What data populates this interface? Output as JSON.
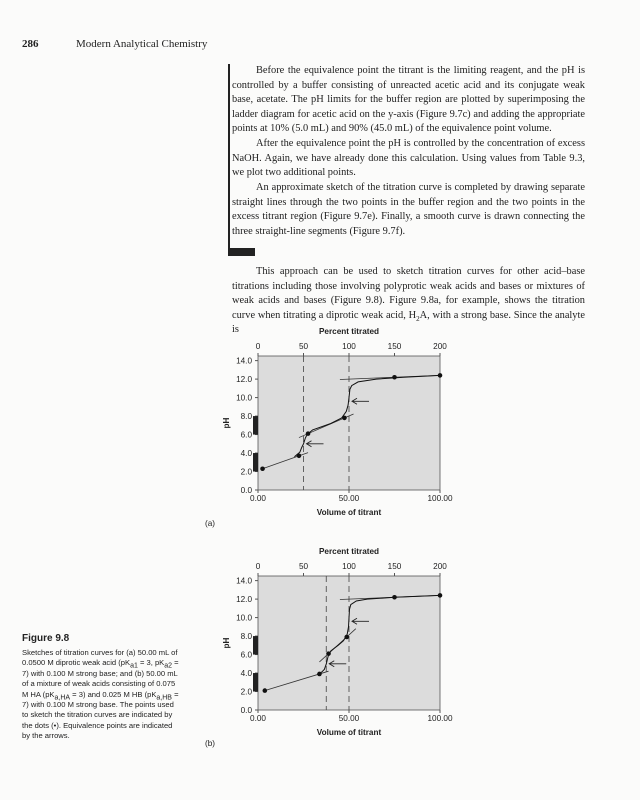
{
  "header": {
    "page_number": "286",
    "running_title": "Modern Analytical Chemistry"
  },
  "paragraphs": [
    [
      "Before the equivalence point the titrant is the limiting reagent, and the pH is controlled by a buffer consisting of unreacted acetic acid and its conjugate weak base, acetate. The pH limits for the buffer region are plotted by superimposing the ladder diagram for acetic acid on the y-axis (Figure 9.7c) and adding the appropriate points at 10% (5.0 mL) and 90% (45.0 mL) of the equivalence point volume."
    ],
    [
      "After the equivalence point the pH is controlled by the concentration of excess NaOH. Again, we have already done this calculation. Using values from Table 9.3, we plot two additional points."
    ],
    [
      "An approximate sketch of the titration curve is completed by drawing separate straight lines through the two points in the buffer region and the two points in the excess titrant region (Figure 9.7e). Finally, a smooth curve is drawn connecting the three straight-line segments (Figure 9.7f)."
    ],
    [
      "This approach can be used to sketch titration curves for other acid–base titrations including those involving polyprotic weak acids and bases or mixtures of weak acids and bases (Figure 9.8). Figure 9.8a, for example, shows the titration curve when titrating a diprotic weak acid, H",
      "2",
      "A, with a strong base. Since the analyte is"
    ]
  ],
  "figure": {
    "label": "Figure 9.8",
    "caption": [
      "Sketches of titration curves for (a) 50.00 mL of 0.0500 M diprotic weak acid (pK",
      "a1",
      " = 3, pK",
      "a2",
      " = 7) with 0.100 M strong base; and (b) 50.00 mL of a mixture of weak acids consisting of 0.075 M HA (pK",
      "a,HA",
      " = 3) and 0.025 M HB (pK",
      "a,HB",
      " = 7) with 0.100 M strong base. The points used to sketch the titration curves are indicated by the dots (•). Equivalence points are indicated by the arrows."
    ]
  },
  "chart_data": [
    {
      "type": "line",
      "panel": "(a)",
      "x2_label": "Percent titrated",
      "x_label": "Volume of titrant",
      "y_label": "pH",
      "xlim": [
        0,
        100
      ],
      "x2lim": [
        0,
        200
      ],
      "ylim": [
        0,
        14.5
      ],
      "xticks": [
        {
          "value": 0,
          "label": "0.00"
        },
        {
          "value": 50,
          "label": "50.00"
        },
        {
          "value": 100,
          "label": "100.00"
        }
      ],
      "x2ticks": [
        0,
        50,
        100,
        150,
        200
      ],
      "yticks": [
        {
          "value": 0,
          "label": "0.0"
        },
        {
          "value": 2,
          "label": "2.0"
        },
        {
          "value": 4,
          "label": "4.0"
        },
        {
          "value": 6,
          "label": "6.0"
        },
        {
          "value": 8,
          "label": "8.0"
        },
        {
          "value": 10,
          "label": "10.0"
        },
        {
          "value": 12,
          "label": "12.0"
        },
        {
          "value": 14,
          "label": "14.0"
        }
      ],
      "points": {
        "x": [
          2.5,
          22.5,
          27.5,
          47.5,
          75,
          100
        ],
        "y": [
          2.3,
          3.7,
          6.1,
          7.8,
          12.2,
          12.4
        ]
      },
      "curve": {
        "x": [
          20,
          23,
          24,
          25,
          26,
          27,
          30,
          40,
          46,
          48.5,
          49.5,
          50,
          50.5,
          51.5,
          55,
          65,
          80,
          100
        ],
        "y": [
          3.6,
          4.1,
          4.6,
          5.0,
          5.6,
          6.0,
          6.5,
          7.2,
          7.8,
          8.5,
          9.2,
          10,
          10.9,
          11.3,
          11.7,
          12.0,
          12.2,
          12.4
        ]
      },
      "equivalence_points": {
        "x": [
          25,
          50
        ],
        "y": [
          5.0,
          9.6
        ]
      },
      "buffer_regions": [
        [
          2,
          4
        ],
        [
          6,
          8
        ]
      ]
    },
    {
      "type": "line",
      "panel": "(b)",
      "x2_label": "Percent titrated",
      "x_label": "Volume of titrant",
      "y_label": "pH",
      "xlim": [
        0,
        100
      ],
      "x2lim": [
        0,
        200
      ],
      "ylim": [
        0,
        14.5
      ],
      "xticks": [
        {
          "value": 0,
          "label": "0.00"
        },
        {
          "value": 50,
          "label": "50.00"
        },
        {
          "value": 100,
          "label": "100.00"
        }
      ],
      "x2ticks": [
        0,
        50,
        100,
        150,
        200
      ],
      "yticks": [
        {
          "value": 0,
          "label": "0.0"
        },
        {
          "value": 2,
          "label": "2.0"
        },
        {
          "value": 4,
          "label": "4.0"
        },
        {
          "value": 6,
          "label": "6.0"
        },
        {
          "value": 8,
          "label": "8.0"
        },
        {
          "value": 10,
          "label": "10.0"
        },
        {
          "value": 12,
          "label": "12.0"
        },
        {
          "value": 14,
          "label": "14.0"
        }
      ],
      "points": {
        "x": [
          3.75,
          33.75,
          38.75,
          48.75,
          75,
          100
        ],
        "y": [
          2.1,
          3.9,
          6.1,
          7.9,
          12.2,
          12.4
        ]
      },
      "curve": {
        "x": [
          33,
          35,
          36.5,
          37.5,
          38.5,
          40,
          44,
          47,
          49,
          49.7,
          50,
          50.3,
          51,
          54,
          60,
          75,
          100
        ],
        "y": [
          3.9,
          4.1,
          4.4,
          5.0,
          5.8,
          6.4,
          7.0,
          7.5,
          8.2,
          9.0,
          10,
          10.9,
          11.4,
          11.8,
          12.0,
          12.2,
          12.4
        ]
      },
      "equivalence_points": {
        "x": [
          37.5,
          50
        ],
        "y": [
          5.0,
          9.6
        ]
      },
      "buffer_regions": [
        [
          2,
          4
        ],
        [
          6,
          8
        ]
      ]
    }
  ]
}
